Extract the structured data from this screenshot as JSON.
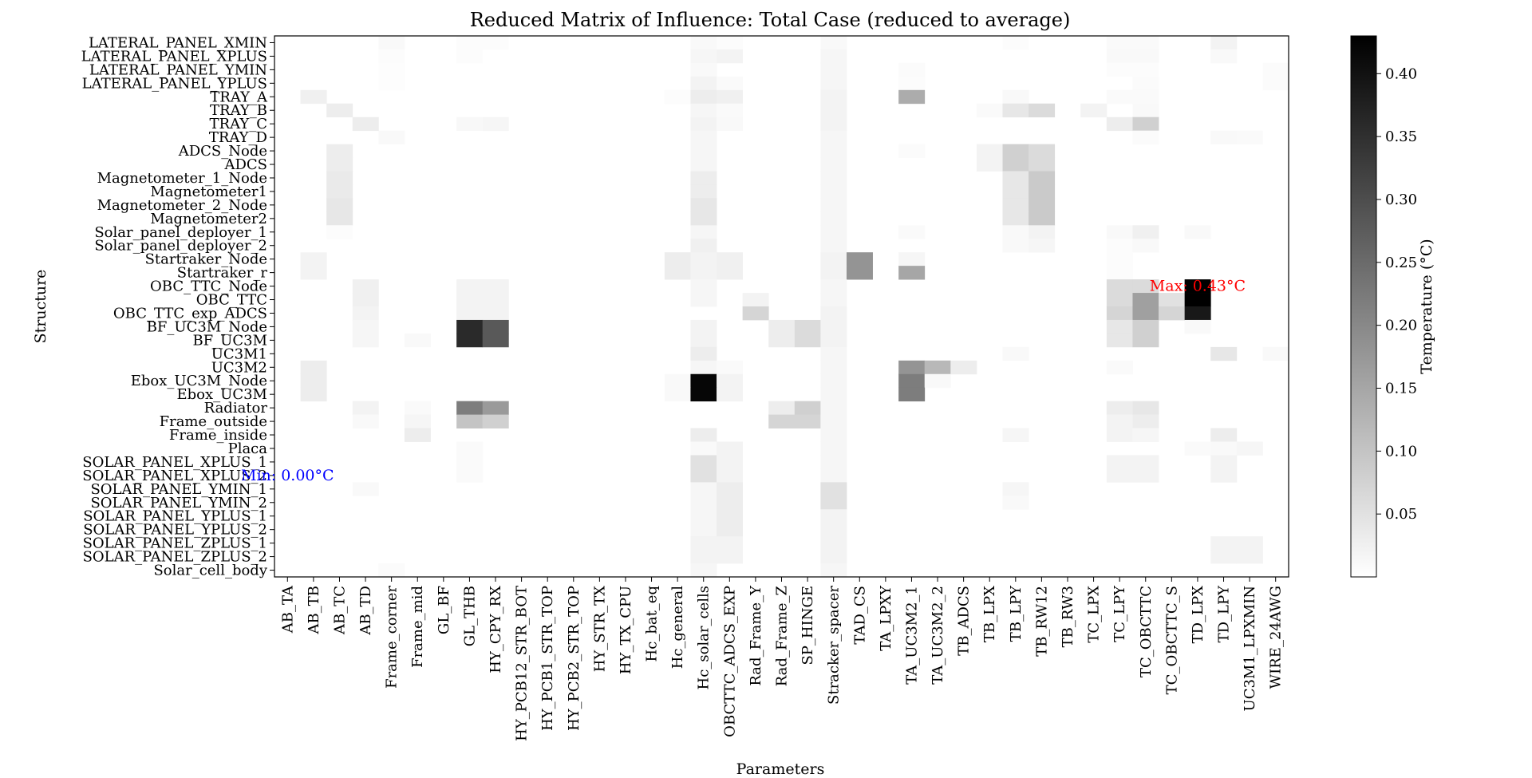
{
  "chart_data": {
    "type": "heatmap",
    "title": "Reduced Matrix of Influence: Total Case (reduced to average)",
    "xlabel": "Parameters",
    "ylabel": "Structure",
    "x": [
      "AB_TA",
      "AB_TB",
      "AB_TC",
      "AB_TD",
      "Frame_corner",
      "Frame_mid",
      "GL_BF",
      "GL_THB",
      "HY_CPY_RX",
      "HY_PCB12_STR_BOT",
      "HY_PCB1_STR_TOP",
      "HY_PCB2_STR_TOP",
      "HY_STR_TX",
      "HY_TX_CPU",
      "Hc_bat_eq",
      "Hc_general",
      "Hc_solar_cells",
      "OBCTTC_ADCS_EXP",
      "Rad_Frame_Y",
      "Rad_Frame_Z",
      "SP_HINGE",
      "Stracker_spacer",
      "TAD_CS",
      "TA_LPXY",
      "TA_UC3M2_1",
      "TA_UC3M2_2",
      "TB_ADCS",
      "TB_LPX",
      "TB_LPY",
      "TB_RW12",
      "TB_RW3",
      "TC_LPX",
      "TC_LPY",
      "TC_OBCTTC",
      "TC_OBCTTC_S",
      "TD_LPX",
      "TD_LPY",
      "UC3M1_LPXMIN",
      "WIRE_24AWG"
    ],
    "y": [
      "LATERAL_PANEL_XMIN",
      "LATERAL_PANEL_XPLUS",
      "LATERAL_PANEL_YMIN",
      "LATERAL_PANEL_YPLUS",
      "TRAY_A",
      "TRAY_B",
      "TRAY_C",
      "TRAY_D",
      "ADCS_Node",
      "ADCS",
      "Magnetometer_1_Node",
      "Magnetometer1",
      "Magnetometer_2_Node",
      "Magnetometer2",
      "Solar_panel_deployer_1",
      "Solar_panel_deployer_2",
      "Startraker_Node",
      "Startraker_r",
      "OBC_TTC_Node",
      "OBC_TTC",
      "OBC_TTC_exp_ADCS",
      "BF_UC3M_Node",
      "BF_UC3M",
      "UC3M1",
      "UC3M2",
      "Ebox_UC3M_Node",
      "Ebox_UC3M",
      "Radiator",
      "Frame_outside",
      "Frame_inside",
      "Placa",
      "SOLAR_PANEL_XPLUS_1",
      "SOLAR_PANEL_XPLUS_2",
      "SOLAR_PANEL_YMIN_1",
      "SOLAR_PANEL_YMIN_2",
      "SOLAR_PANEL_YPLUS_1",
      "SOLAR_PANEL_YPLUS_2",
      "SOLAR_PANEL_ZPLUS_1",
      "SOLAR_PANEL_ZPLUS_2",
      "Solar_cell_body"
    ],
    "colorbar": {
      "label": "Temperature (°C)",
      "range": [
        0,
        0.43
      ],
      "ticks": [
        0.05,
        0.1,
        0.15,
        0.2,
        0.25,
        0.3,
        0.35,
        0.4
      ],
      "tick_labels": [
        "0.05",
        "0.10",
        "0.15",
        "0.20",
        "0.25",
        "0.30",
        "0.35",
        "0.40"
      ],
      "colormap": "grays",
      "low_color": "#ffffff",
      "high_color": "#000000"
    },
    "annotations": {
      "max": {
        "text": "Max: 0.43°C",
        "row": 18,
        "col": 35,
        "color": "#ff0000"
      },
      "min": {
        "text": "Min: 0.00°C",
        "row": 32,
        "col": 0,
        "color": "#0000ff"
      }
    },
    "cells": [
      [
        0,
        4,
        0.01
      ],
      [
        0,
        7,
        0.005
      ],
      [
        0,
        8,
        0.005
      ],
      [
        0,
        16,
        0.01
      ],
      [
        0,
        17,
        0.005
      ],
      [
        0,
        21,
        0.01
      ],
      [
        0,
        28,
        0.005
      ],
      [
        0,
        32,
        0.008
      ],
      [
        0,
        33,
        0.008
      ],
      [
        0,
        36,
        0.02
      ],
      [
        1,
        4,
        0.005
      ],
      [
        1,
        7,
        0.005
      ],
      [
        1,
        16,
        0.015
      ],
      [
        1,
        17,
        0.02
      ],
      [
        1,
        21,
        0.015
      ],
      [
        1,
        32,
        0.01
      ],
      [
        1,
        33,
        0.01
      ],
      [
        1,
        36,
        0.01
      ],
      [
        2,
        4,
        0.003
      ],
      [
        2,
        16,
        0.01
      ],
      [
        2,
        21,
        0.015
      ],
      [
        2,
        24,
        0.006
      ],
      [
        2,
        32,
        0.005
      ],
      [
        2,
        33,
        0.005
      ],
      [
        2,
        38,
        0.006
      ],
      [
        3,
        4,
        0.003
      ],
      [
        3,
        16,
        0.02
      ],
      [
        3,
        17,
        0.008
      ],
      [
        3,
        21,
        0.015
      ],
      [
        3,
        24,
        0.005
      ],
      [
        3,
        33,
        0.006
      ],
      [
        3,
        38,
        0.006
      ],
      [
        4,
        1,
        0.025
      ],
      [
        4,
        15,
        0.005
      ],
      [
        4,
        16,
        0.03
      ],
      [
        4,
        17,
        0.025
      ],
      [
        4,
        21,
        0.02
      ],
      [
        4,
        24,
        0.14
      ],
      [
        4,
        28,
        0.01
      ],
      [
        4,
        32,
        0.008
      ],
      [
        4,
        33,
        0.008
      ],
      [
        5,
        2,
        0.03
      ],
      [
        5,
        16,
        0.015
      ],
      [
        5,
        17,
        0.008
      ],
      [
        5,
        21,
        0.02
      ],
      [
        5,
        27,
        0.008
      ],
      [
        5,
        28,
        0.04
      ],
      [
        5,
        29,
        0.06
      ],
      [
        5,
        31,
        0.02
      ],
      [
        5,
        33,
        0.01
      ],
      [
        6,
        3,
        0.03
      ],
      [
        6,
        7,
        0.012
      ],
      [
        6,
        8,
        0.015
      ],
      [
        6,
        16,
        0.02
      ],
      [
        6,
        17,
        0.01
      ],
      [
        6,
        21,
        0.02
      ],
      [
        6,
        32,
        0.03
      ],
      [
        6,
        33,
        0.08
      ],
      [
        7,
        4,
        0.01
      ],
      [
        7,
        16,
        0.015
      ],
      [
        7,
        21,
        0.015
      ],
      [
        7,
        33,
        0.006
      ],
      [
        7,
        36,
        0.01
      ],
      [
        7,
        37,
        0.008
      ],
      [
        8,
        2,
        0.03
      ],
      [
        8,
        16,
        0.015
      ],
      [
        8,
        21,
        0.015
      ],
      [
        8,
        24,
        0.006
      ],
      [
        8,
        27,
        0.02
      ],
      [
        8,
        28,
        0.08
      ],
      [
        8,
        29,
        0.06
      ],
      [
        9,
        2,
        0.03
      ],
      [
        9,
        16,
        0.015
      ],
      [
        9,
        21,
        0.015
      ],
      [
        9,
        27,
        0.02
      ],
      [
        9,
        28,
        0.08
      ],
      [
        9,
        29,
        0.06
      ],
      [
        10,
        2,
        0.035
      ],
      [
        10,
        16,
        0.03
      ],
      [
        10,
        21,
        0.015
      ],
      [
        10,
        28,
        0.04
      ],
      [
        10,
        29,
        0.09
      ],
      [
        11,
        2,
        0.035
      ],
      [
        11,
        16,
        0.03
      ],
      [
        11,
        21,
        0.015
      ],
      [
        11,
        28,
        0.04
      ],
      [
        11,
        29,
        0.09
      ],
      [
        12,
        2,
        0.04
      ],
      [
        12,
        16,
        0.04
      ],
      [
        12,
        21,
        0.015
      ],
      [
        12,
        28,
        0.04
      ],
      [
        12,
        29,
        0.09
      ],
      [
        13,
        2,
        0.04
      ],
      [
        13,
        16,
        0.04
      ],
      [
        13,
        21,
        0.015
      ],
      [
        13,
        28,
        0.04
      ],
      [
        13,
        29,
        0.09
      ],
      [
        14,
        2,
        0.005
      ],
      [
        14,
        16,
        0.015
      ],
      [
        14,
        21,
        0.015
      ],
      [
        14,
        24,
        0.008
      ],
      [
        14,
        28,
        0.01
      ],
      [
        14,
        29,
        0.02
      ],
      [
        14,
        32,
        0.01
      ],
      [
        14,
        33,
        0.025
      ],
      [
        14,
        35,
        0.01
      ],
      [
        15,
        16,
        0.025
      ],
      [
        15,
        21,
        0.015
      ],
      [
        15,
        28,
        0.01
      ],
      [
        15,
        29,
        0.015
      ],
      [
        15,
        32,
        0.005
      ],
      [
        15,
        33,
        0.01
      ],
      [
        16,
        1,
        0.02
      ],
      [
        16,
        15,
        0.03
      ],
      [
        16,
        16,
        0.02
      ],
      [
        16,
        17,
        0.025
      ],
      [
        16,
        21,
        0.02
      ],
      [
        16,
        22,
        0.18
      ],
      [
        16,
        24,
        0.015
      ],
      [
        16,
        32,
        0.005
      ],
      [
        17,
        1,
        0.02
      ],
      [
        17,
        15,
        0.03
      ],
      [
        17,
        16,
        0.02
      ],
      [
        17,
        17,
        0.025
      ],
      [
        17,
        21,
        0.02
      ],
      [
        17,
        22,
        0.18
      ],
      [
        17,
        24,
        0.15
      ],
      [
        17,
        32,
        0.005
      ],
      [
        18,
        3,
        0.025
      ],
      [
        18,
        7,
        0.02
      ],
      [
        18,
        8,
        0.02
      ],
      [
        18,
        16,
        0.015
      ],
      [
        18,
        21,
        0.015
      ],
      [
        18,
        32,
        0.06
      ],
      [
        18,
        33,
        0.06
      ],
      [
        18,
        35,
        0.43
      ],
      [
        19,
        3,
        0.025
      ],
      [
        19,
        7,
        0.02
      ],
      [
        19,
        8,
        0.02
      ],
      [
        19,
        16,
        0.015
      ],
      [
        19,
        18,
        0.02
      ],
      [
        19,
        21,
        0.015
      ],
      [
        19,
        32,
        0.06
      ],
      [
        19,
        33,
        0.16
      ],
      [
        19,
        34,
        0.05
      ],
      [
        19,
        35,
        0.43
      ],
      [
        20,
        3,
        0.02
      ],
      [
        20,
        7,
        0.02
      ],
      [
        20,
        8,
        0.02
      ],
      [
        20,
        18,
        0.07
      ],
      [
        20,
        21,
        0.02
      ],
      [
        20,
        32,
        0.07
      ],
      [
        20,
        33,
        0.16
      ],
      [
        20,
        34,
        0.07
      ],
      [
        20,
        35,
        0.39
      ],
      [
        21,
        3,
        0.015
      ],
      [
        21,
        7,
        0.36
      ],
      [
        21,
        8,
        0.28
      ],
      [
        21,
        16,
        0.02
      ],
      [
        21,
        19,
        0.03
      ],
      [
        21,
        20,
        0.06
      ],
      [
        21,
        21,
        0.02
      ],
      [
        21,
        32,
        0.04
      ],
      [
        21,
        33,
        0.08
      ],
      [
        21,
        35,
        0.01
      ],
      [
        22,
        3,
        0.015
      ],
      [
        22,
        5,
        0.01
      ],
      [
        22,
        7,
        0.36
      ],
      [
        22,
        8,
        0.28
      ],
      [
        22,
        16,
        0.02
      ],
      [
        22,
        19,
        0.03
      ],
      [
        22,
        20,
        0.06
      ],
      [
        22,
        21,
        0.02
      ],
      [
        22,
        32,
        0.04
      ],
      [
        22,
        33,
        0.08
      ],
      [
        23,
        16,
        0.03
      ],
      [
        23,
        21,
        0.015
      ],
      [
        23,
        28,
        0.01
      ],
      [
        23,
        36,
        0.04
      ],
      [
        23,
        38,
        0.01
      ],
      [
        24,
        1,
        0.03
      ],
      [
        24,
        16,
        0.015
      ],
      [
        24,
        17,
        0.008
      ],
      [
        24,
        21,
        0.015
      ],
      [
        24,
        24,
        0.18
      ],
      [
        24,
        25,
        0.12
      ],
      [
        24,
        26,
        0.03
      ],
      [
        24,
        32,
        0.008
      ],
      [
        25,
        1,
        0.03
      ],
      [
        25,
        15,
        0.01
      ],
      [
        25,
        16,
        0.42
      ],
      [
        25,
        17,
        0.02
      ],
      [
        25,
        21,
        0.015
      ],
      [
        25,
        24,
        0.22
      ],
      [
        25,
        25,
        0.01
      ],
      [
        26,
        1,
        0.03
      ],
      [
        26,
        15,
        0.01
      ],
      [
        26,
        16,
        0.42
      ],
      [
        26,
        17,
        0.02
      ],
      [
        26,
        21,
        0.015
      ],
      [
        26,
        24,
        0.22
      ],
      [
        27,
        3,
        0.02
      ],
      [
        27,
        5,
        0.008
      ],
      [
        27,
        7,
        0.22
      ],
      [
        27,
        8,
        0.17
      ],
      [
        27,
        19,
        0.03
      ],
      [
        27,
        20,
        0.08
      ],
      [
        27,
        21,
        0.015
      ],
      [
        27,
        32,
        0.03
      ],
      [
        27,
        33,
        0.04
      ],
      [
        28,
        3,
        0.01
      ],
      [
        28,
        5,
        0.015
      ],
      [
        28,
        7,
        0.1
      ],
      [
        28,
        8,
        0.08
      ],
      [
        28,
        19,
        0.07
      ],
      [
        28,
        20,
        0.07
      ],
      [
        28,
        21,
        0.015
      ],
      [
        28,
        32,
        0.02
      ],
      [
        28,
        33,
        0.03
      ],
      [
        29,
        5,
        0.03
      ],
      [
        29,
        16,
        0.03
      ],
      [
        29,
        21,
        0.015
      ],
      [
        29,
        28,
        0.015
      ],
      [
        29,
        32,
        0.02
      ],
      [
        29,
        33,
        0.015
      ],
      [
        29,
        36,
        0.03
      ],
      [
        30,
        7,
        0.008
      ],
      [
        30,
        16,
        0.01
      ],
      [
        30,
        17,
        0.02
      ],
      [
        30,
        21,
        0.015
      ],
      [
        30,
        35,
        0.008
      ],
      [
        30,
        36,
        0.01
      ],
      [
        30,
        37,
        0.015
      ],
      [
        31,
        7,
        0.008
      ],
      [
        31,
        16,
        0.05
      ],
      [
        31,
        17,
        0.02
      ],
      [
        31,
        21,
        0.015
      ],
      [
        31,
        32,
        0.02
      ],
      [
        31,
        33,
        0.02
      ],
      [
        31,
        36,
        0.02
      ],
      [
        32,
        7,
        0.008
      ],
      [
        32,
        16,
        0.05
      ],
      [
        32,
        17,
        0.02
      ],
      [
        32,
        21,
        0.015
      ],
      [
        32,
        32,
        0.02
      ],
      [
        32,
        33,
        0.02
      ],
      [
        32,
        36,
        0.02
      ],
      [
        33,
        3,
        0.01
      ],
      [
        33,
        16,
        0.015
      ],
      [
        33,
        17,
        0.03
      ],
      [
        33,
        21,
        0.05
      ],
      [
        33,
        28,
        0.015
      ],
      [
        34,
        16,
        0.015
      ],
      [
        34,
        17,
        0.03
      ],
      [
        34,
        21,
        0.05
      ],
      [
        34,
        28,
        0.01
      ],
      [
        35,
        16,
        0.015
      ],
      [
        35,
        17,
        0.03
      ],
      [
        35,
        21,
        0.02
      ],
      [
        36,
        16,
        0.015
      ],
      [
        36,
        17,
        0.03
      ],
      [
        36,
        21,
        0.02
      ],
      [
        37,
        16,
        0.02
      ],
      [
        37,
        17,
        0.02
      ],
      [
        37,
        21,
        0.02
      ],
      [
        37,
        36,
        0.02
      ],
      [
        37,
        37,
        0.02
      ],
      [
        38,
        16,
        0.02
      ],
      [
        38,
        17,
        0.02
      ],
      [
        38,
        21,
        0.02
      ],
      [
        38,
        36,
        0.02
      ],
      [
        38,
        37,
        0.02
      ],
      [
        39,
        4,
        0.006
      ],
      [
        39,
        16,
        0.015
      ],
      [
        39,
        21,
        0.015
      ]
    ]
  }
}
